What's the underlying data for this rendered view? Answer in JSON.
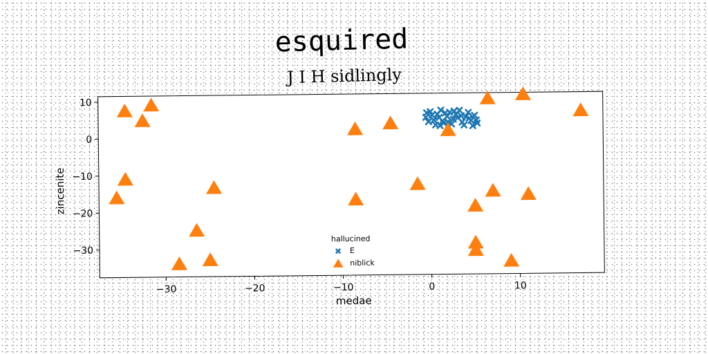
{
  "chart_data": {
    "type": "scatter",
    "title": "esquired",
    "subtitle": "J I H sidlingly",
    "xlabel": "medae",
    "ylabel": "zincenite",
    "xlim": [
      -37.5,
      19.5
    ],
    "ylim": [
      -37.5,
      11.5
    ],
    "xticks": [
      -30,
      -20,
      -10,
      0,
      10
    ],
    "yticks": [
      10,
      0,
      -10,
      -20,
      -30
    ],
    "xtick_labels": [
      "−30",
      "−20",
      "−10",
      "0",
      "10"
    ],
    "ytick_labels": [
      "10",
      "0",
      "−10",
      "−20",
      "−30"
    ],
    "grid": false,
    "legend": {
      "title": "hallucined",
      "placement": "lower-center"
    },
    "series": [
      {
        "name": "E",
        "marker": "x",
        "color": "#1f77b4",
        "points": [
          [
            -0.5,
            5.0
          ],
          [
            0.0,
            6.5
          ],
          [
            0.4,
            4.2
          ],
          [
            0.8,
            5.8
          ],
          [
            1.2,
            6.9
          ],
          [
            1.5,
            3.4
          ],
          [
            1.9,
            5.2
          ],
          [
            2.2,
            6.3
          ],
          [
            2.6,
            4.4
          ],
          [
            2.9,
            5.7
          ],
          [
            3.3,
            6.8
          ],
          [
            3.6,
            3.6
          ],
          [
            4.0,
            5.0
          ],
          [
            4.3,
            6.2
          ],
          [
            4.6,
            4.0
          ],
          [
            5.0,
            5.4
          ],
          [
            5.3,
            3.3
          ],
          [
            -0.2,
            3.8
          ],
          [
            0.6,
            2.9
          ],
          [
            1.0,
            4.9
          ],
          [
            1.7,
            6.1
          ],
          [
            2.4,
            3.1
          ],
          [
            3.1,
            4.8
          ],
          [
            3.8,
            2.8
          ],
          [
            4.4,
            4.6
          ],
          [
            0.2,
            5.6
          ],
          [
            1.4,
            4.0
          ],
          [
            2.7,
            6.6
          ],
          [
            3.5,
            5.3
          ],
          [
            4.8,
            2.6
          ],
          [
            -0.4,
            6.2
          ],
          [
            2.0,
            3.7
          ],
          [
            5.2,
            4.1
          ],
          [
            1.1,
            2.7
          ]
        ]
      },
      {
        "name": "niblick",
        "marker": "triangle",
        "color": "#ff7f0e",
        "points": [
          [
            -34.5,
            7.5
          ],
          [
            -31.5,
            9.0
          ],
          [
            -32.5,
            4.8
          ],
          [
            -34.5,
            -11.0
          ],
          [
            -35.5,
            -16.0
          ],
          [
            -24.5,
            -13.5
          ],
          [
            -26.5,
            -25.0
          ],
          [
            -25.0,
            -33.0
          ],
          [
            -28.5,
            -34.0
          ],
          [
            -8.5,
            2.0
          ],
          [
            -4.5,
            3.5
          ],
          [
            -8.5,
            -17.0
          ],
          [
            -1.5,
            -13.0
          ],
          [
            2.0,
            1.5
          ],
          [
            6.5,
            10.0
          ],
          [
            10.5,
            11.0
          ],
          [
            17.0,
            6.5
          ],
          [
            7.0,
            -15.0
          ],
          [
            11.0,
            -16.0
          ],
          [
            5.0,
            -19.0
          ],
          [
            5.0,
            -29.0
          ],
          [
            5.0,
            -31.0
          ],
          [
            9.0,
            -34.0
          ]
        ]
      }
    ]
  }
}
